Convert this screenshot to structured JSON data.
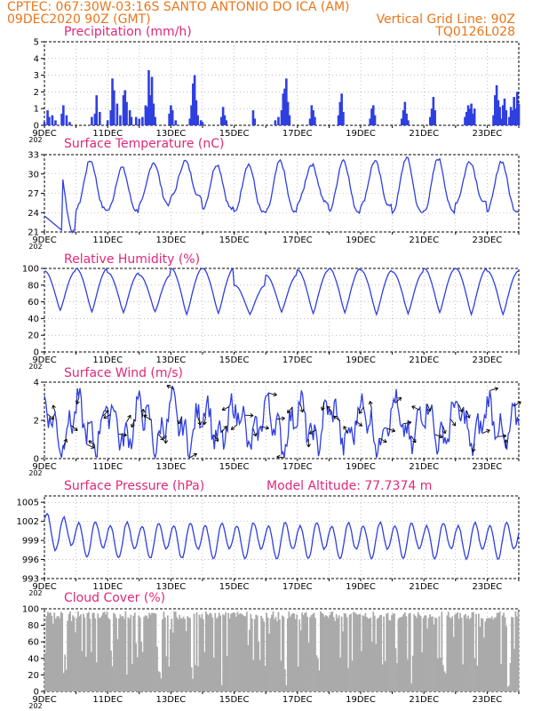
{
  "header": {
    "station": "CPTEC:  067:30W-03:16S  SANTO ANTONIO DO ICA (AM)",
    "run": "09DEC2020 90Z (GMT)",
    "grid_line": "Vertical Grid Line: 90Z",
    "code": "TQ0126L028"
  },
  "colors": {
    "header": "#e8761c",
    "title": "#e0287a",
    "line": "#2f3fe0",
    "bar": "#2f3fe0",
    "cloud": "#aaaaaa"
  },
  "x_ticks": [
    "9DEC",
    "11DEC",
    "13DEC",
    "15DEC",
    "17DEC",
    "19DEC",
    "21DEC",
    "23DEC"
  ],
  "x_cut_label": "202",
  "chart_data": [
    {
      "id": "precip",
      "type": "bar",
      "title": "Precipitation (mm/h)",
      "ylim": [
        0,
        5
      ],
      "yticks": [
        0,
        1,
        2,
        3,
        4,
        5
      ],
      "values_by_day": {
        "9.0": 0.2,
        "9.1": 0.9,
        "9.15": 0.5,
        "9.25": 0.6,
        "9.35": 0.3,
        "9.55": 0.7,
        "9.6": 1.2,
        "9.7": 0.6,
        "9.8": 0.2,
        "10.5": 0.5,
        "10.6": 0.7,
        "10.65": 1.8,
        "10.75": 0.8,
        "11.0": 0.3,
        "11.1": 0.9,
        "11.15": 2.8,
        "11.2": 2.1,
        "11.3": 1.3,
        "11.4": 0.6,
        "11.5": 1.8,
        "11.55": 2.1,
        "11.6": 1.4,
        "11.7": 0.9,
        "11.75": 0.5,
        "11.9": 0.5,
        "12.0": 0.4,
        "12.1": 0.5,
        "12.2": 1.2,
        "12.25": 1.1,
        "12.3": 3.3,
        "12.35": 1.8,
        "12.4": 2.9,
        "12.45": 1.3,
        "12.5": 0.5,
        "12.95": 0.7,
        "13.0": 1.2,
        "13.05": 0.9,
        "13.15": 0.3,
        "13.6": 0.4,
        "13.65": 1.2,
        "13.7": 2.5,
        "13.75": 3.0,
        "13.8": 1.5,
        "13.85": 0.6,
        "13.95": 0.3,
        "14.0": 0.2,
        "14.6": 0.5,
        "14.65": 1.1,
        "14.7": 0.6,
        "14.75": 0.3,
        "15.6": 0.9,
        "15.65": 0.4,
        "16.3": 0.3,
        "16.4": 0.5,
        "16.5": 0.9,
        "16.55": 1.9,
        "16.6": 2.2,
        "16.65": 2.8,
        "16.7": 1.4,
        "16.75": 0.6,
        "17.4": 0.4,
        "17.45": 1.2,
        "17.5": 0.9,
        "17.55": 0.5,
        "18.3": 0.6,
        "18.35": 1.4,
        "18.4": 1.9,
        "18.45": 0.8,
        "19.3": 0.4,
        "19.35": 1.0,
        "19.4": 1.2,
        "19.45": 0.6,
        "20.3": 0.4,
        "20.35": 0.9,
        "20.4": 1.4,
        "20.45": 0.7,
        "20.5": 0.3,
        "21.2": 0.5,
        "21.25": 1.0,
        "21.3": 1.7,
        "21.35": 0.9,
        "22.3": 0.5,
        "22.35": 0.8,
        "22.4": 1.2,
        "22.45": 1.0,
        "22.5": 1.3,
        "22.55": 0.7,
        "22.6": 1.0,
        "23.2": 0.6,
        "23.25": 1.8,
        "23.3": 2.4,
        "23.35": 1.5,
        "23.4": 1.1,
        "23.45": 0.4,
        "23.5": 1.2,
        "23.55": 1.6,
        "23.6": 0.9,
        "23.7": 0.5,
        "23.75": 1.1,
        "23.8": 0.9,
        "23.85": 1.7,
        "23.9": 1.0,
        "23.95": 2.0,
        "24.0": 1.3
      }
    },
    {
      "id": "temp",
      "type": "line",
      "title": "Surface Temperature (nC)",
      "ylim": [
        21,
        33
      ],
      "yticks": [
        21,
        24,
        27,
        30,
        33
      ],
      "daily_min": [
        21.0,
        24.5,
        24.3,
        25.3,
        26.4,
        24.6,
        24.0,
        24.0,
        25.5,
        24.2,
        25.0,
        24.0,
        24.2,
        25.5,
        24.3
      ],
      "daily_max": [
        31.5,
        32.1,
        31.0,
        31.8,
        32.0,
        31.5,
        31.5,
        32.0,
        31.5,
        32.2,
        32.0,
        32.5,
        32.4,
        32.0,
        32.0
      ]
    },
    {
      "id": "rh",
      "type": "line",
      "title": "Relative Humidity (%)",
      "ylim": [
        0,
        100
      ],
      "yticks": [
        0,
        20,
        40,
        60,
        80,
        100
      ],
      "daily_min": [
        50,
        48,
        47,
        48,
        45,
        46,
        45,
        48,
        46,
        47,
        45,
        46,
        47,
        45,
        45
      ],
      "daily_max": [
        97,
        100,
        95,
        92,
        100,
        100,
        80,
        92,
        98,
        100,
        98,
        96,
        100,
        100,
        97
      ]
    },
    {
      "id": "wind",
      "type": "line",
      "title": "Surface Wind (m/s)",
      "ylim": [
        0,
        4
      ],
      "yticks": [
        0,
        2,
        4
      ],
      "arrows": true
    },
    {
      "id": "pres",
      "type": "line",
      "title": "Surface Pressure (hPa)",
      "extra_title": "Model Altitude: 77.7374 m",
      "ylim": [
        993,
        1006
      ],
      "yticks": [
        993,
        996,
        999,
        1002,
        1005
      ]
    },
    {
      "id": "cloud",
      "type": "area",
      "title": "Cloud Cover (%)",
      "ylim": [
        0,
        100
      ],
      "yticks": [
        0,
        20,
        40,
        60,
        80,
        100
      ]
    }
  ]
}
